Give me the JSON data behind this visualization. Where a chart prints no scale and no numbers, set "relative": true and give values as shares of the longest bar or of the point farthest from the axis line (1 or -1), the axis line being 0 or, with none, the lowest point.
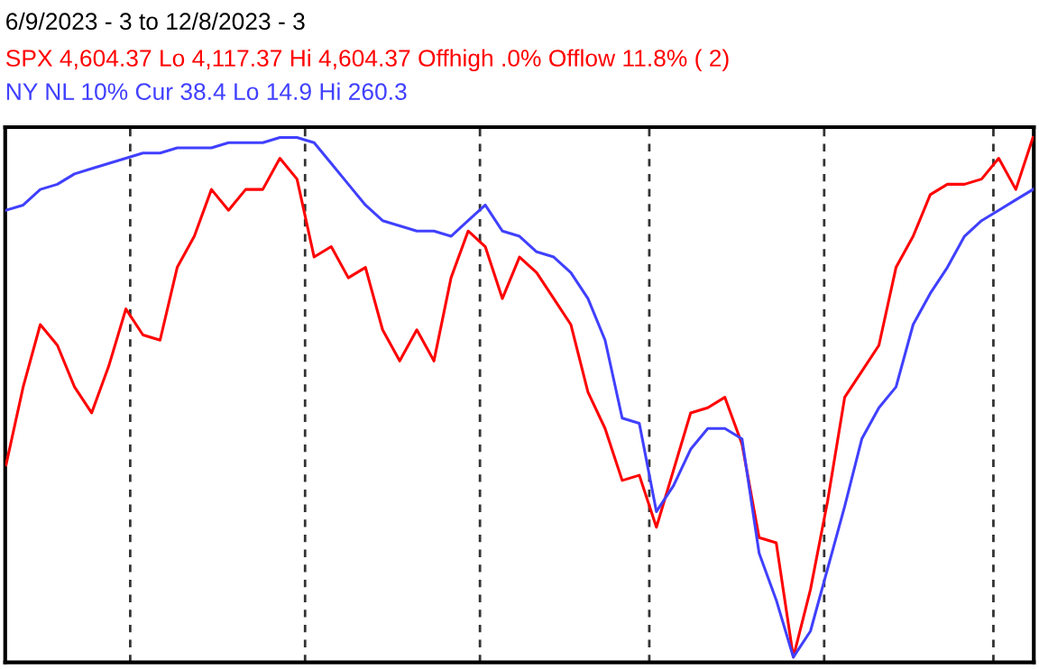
{
  "chart_data": {
    "type": "line",
    "title": "6/9/2023 - 3 to 12/8/2023 - 3",
    "relative": true,
    "line_style": "solid",
    "marker": "none",
    "categories": [
      null,
      null,
      null,
      null,
      null,
      null,
      null,
      null,
      null,
      null,
      null,
      null,
      null,
      null,
      null,
      null,
      null,
      null,
      null,
      null,
      null,
      null,
      null,
      null,
      null,
      null,
      null,
      null,
      null,
      null,
      null,
      null,
      null,
      null,
      null,
      null,
      null,
      null,
      null,
      null,
      null,
      null,
      null,
      null,
      null,
      null,
      null,
      null,
      null,
      null,
      null,
      null,
      null,
      null,
      null,
      null,
      null,
      null,
      null,
      null,
      null
    ],
    "series": [
      {
        "name": "SPX 4,604.37 Lo 4,117.37 Hi 4,604.37 Offhigh .0% Offlow 11.8% ( 2)",
        "color": "#ff0000",
        "values": [
          0.37,
          0.52,
          0.64,
          0.6,
          0.52,
          0.47,
          0.56,
          0.67,
          0.62,
          0.61,
          0.75,
          0.81,
          0.9,
          0.86,
          0.9,
          0.9,
          0.96,
          0.92,
          0.77,
          0.79,
          0.73,
          0.75,
          0.63,
          0.57,
          0.63,
          0.57,
          0.73,
          0.82,
          0.79,
          0.69,
          0.77,
          0.74,
          0.69,
          0.64,
          0.51,
          0.44,
          0.34,
          0.35,
          0.25,
          0.36,
          0.47,
          0.48,
          0.5,
          0.41,
          0.23,
          0.22,
          0,
          0.13,
          0.3,
          0.5,
          0.55,
          0.6,
          0.75,
          0.81,
          0.89,
          0.91,
          0.91,
          0.92,
          0.96,
          0.9,
          1.0
        ]
      },
      {
        "name": "NY NL 10% Cur 38.4 Lo 14.9 Hi 260.3",
        "color": "#4040ff",
        "values": [
          0.86,
          0.87,
          0.9,
          0.91,
          0.93,
          0.94,
          0.95,
          0.96,
          0.97,
          0.97,
          0.98,
          0.98,
          0.98,
          0.99,
          0.99,
          0.99,
          1.0,
          1.0,
          0.99,
          0.95,
          0.91,
          0.87,
          0.84,
          0.83,
          0.82,
          0.82,
          0.81,
          0.84,
          0.87,
          0.82,
          0.81,
          0.78,
          0.77,
          0.74,
          0.69,
          0.61,
          0.46,
          0.45,
          0.28,
          0.33,
          0.4,
          0.44,
          0.44,
          0.42,
          0.2,
          0.11,
          0,
          0.05,
          0.17,
          0.29,
          0.42,
          0.48,
          0.52,
          0.64,
          0.7,
          0.75,
          0.81,
          0.84,
          0.86,
          0.88,
          0.9
        ]
      }
    ]
  }
}
